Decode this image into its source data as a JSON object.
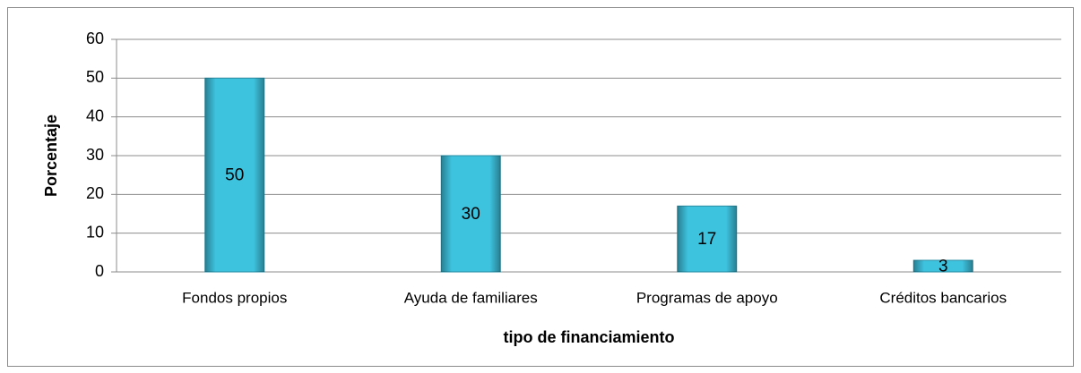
{
  "chart_data": {
    "type": "bar",
    "categories": [
      "Fondos propios",
      "Ayuda de familiares",
      "Programas de apoyo",
      "Créditos bancarios"
    ],
    "values": [
      50,
      30,
      17,
      3
    ],
    "color": "#3ec3df",
    "xlabel": "tipo de financiamiento",
    "ylabel": "Porcentaje",
    "ylim": [
      0,
      60
    ],
    "yticks": [
      0,
      10,
      20,
      30,
      40,
      50,
      60
    ],
    "grid": true,
    "data_labels": true
  }
}
